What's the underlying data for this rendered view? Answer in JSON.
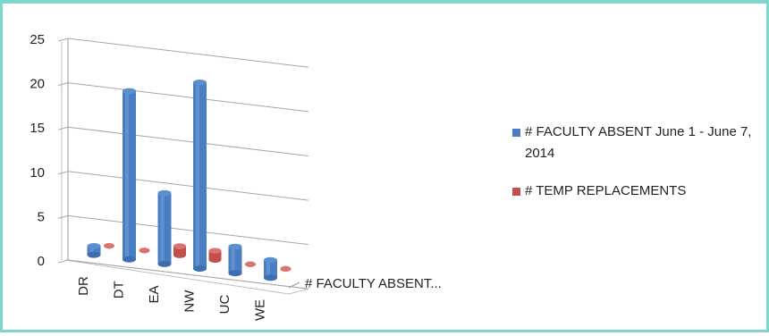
{
  "chart_data": {
    "type": "bar",
    "subtype": "3d-cylinder",
    "categories": [
      "DR",
      "DT",
      "EA",
      "NW",
      "UC",
      "WE"
    ],
    "series": [
      {
        "name": "# FACULTY ABSENT June 1 - June 7, 2014",
        "values": [
          1,
          19,
          8,
          21,
          3,
          2
        ],
        "color": "#4a7ec2"
      },
      {
        "name": "# TEMP REPLACEMENTS",
        "values": [
          0,
          0,
          1,
          1,
          0,
          0
        ],
        "color": "#c0504d"
      }
    ],
    "y_ticks": [
      "0",
      "5",
      "10",
      "15",
      "20",
      "25"
    ],
    "ylim": [
      0,
      25
    ],
    "depth_axis_label": "# FACULTY ABSENT...",
    "grid": true,
    "legend_position": "right"
  }
}
